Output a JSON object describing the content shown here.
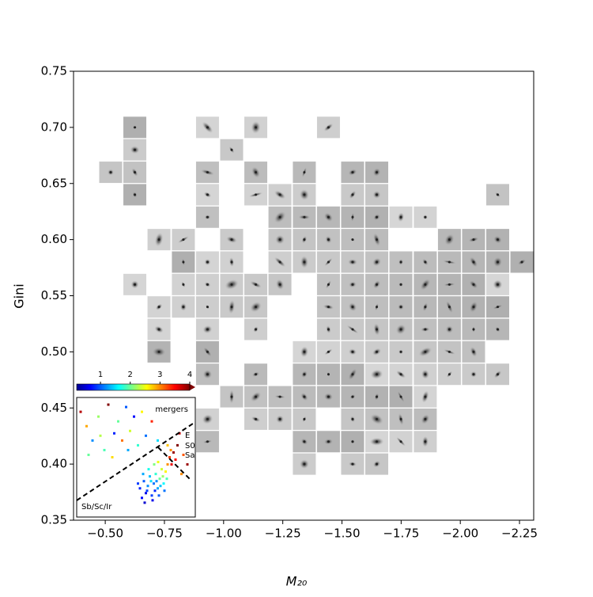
{
  "chart_data": [
    {
      "type": "image-grid",
      "xlabel": "M₂₀",
      "ylabel": "Gini",
      "xlim": [
        -0.366,
        -2.31
      ],
      "ylim": [
        0.35,
        0.75
      ],
      "xticks": [
        {
          "value": -0.5,
          "label": "−0.50"
        },
        {
          "value": -0.75,
          "label": "−0.75"
        },
        {
          "value": -1.0,
          "label": "−1.00"
        },
        {
          "value": -1.25,
          "label": "−1.25"
        },
        {
          "value": -1.5,
          "label": "−1.50"
        },
        {
          "value": -1.75,
          "label": "−1.75"
        },
        {
          "value": -2.0,
          "label": "−2.00"
        },
        {
          "value": -2.25,
          "label": "−2.25"
        }
      ],
      "yticks": [
        0.35,
        {
          "value": 0.4,
          "label": "0.40"
        },
        0.45,
        {
          "value": 0.5,
          "label": "0.50"
        },
        0.55,
        {
          "value": 0.6,
          "label": "0.60"
        },
        0.65,
        {
          "value": 0.7,
          "label": "0.70"
        },
        0.75
      ],
      "x": [
        -0.625,
        -0.932,
        -1.136,
        -1.443,
        -0.625,
        -1.034,
        -0.523,
        -0.625,
        -0.932,
        -1.136,
        -1.341,
        -1.545,
        -1.647,
        -0.625,
        -0.932,
        -1.136,
        -1.238,
        -1.341,
        -1.545,
        -1.647,
        -2.158,
        -0.932,
        -1.238,
        -1.341,
        -1.443,
        -1.545,
        -1.647,
        -1.749,
        -1.852,
        -0.727,
        -0.83,
        -1.034,
        -1.238,
        -1.341,
        -1.443,
        -1.545,
        -1.647,
        -1.954,
        -2.056,
        -2.158,
        -0.83,
        -0.932,
        -1.034,
        -1.238,
        -1.341,
        -1.443,
        -1.545,
        -1.647,
        -1.749,
        -1.852,
        -1.954,
        -2.056,
        -2.158,
        -2.26,
        -0.625,
        -0.83,
        -0.932,
        -1.034,
        -1.136,
        -1.238,
        -1.443,
        -1.545,
        -1.647,
        -1.749,
        -1.852,
        -1.954,
        -2.056,
        -2.158,
        -0.727,
        -0.83,
        -0.932,
        -1.034,
        -1.136,
        -1.443,
        -1.545,
        -1.647,
        -1.749,
        -1.852,
        -1.954,
        -2.056,
        -2.158,
        -0.727,
        -0.932,
        -1.136,
        -1.443,
        -1.545,
        -1.647,
        -1.749,
        -1.852,
        -1.954,
        -2.056,
        -2.158,
        -0.727,
        -0.932,
        -1.341,
        -1.443,
        -1.545,
        -1.647,
        -1.749,
        -1.852,
        -1.954,
        -2.056,
        -0.932,
        -1.136,
        -1.341,
        -1.443,
        -1.545,
        -1.647,
        -1.749,
        -1.852,
        -1.954,
        -2.056,
        -2.158,
        -1.034,
        -1.136,
        -1.238,
        -1.341,
        -1.443,
        -1.545,
        -1.647,
        -1.749,
        -1.852,
        -0.932,
        -1.136,
        -1.238,
        -1.341,
        -1.545,
        -1.647,
        -1.749,
        -1.852,
        -0.932,
        -1.341,
        -1.443,
        -1.545,
        -1.647,
        -1.749,
        -1.852,
        -1.341,
        -1.545,
        -1.647
      ],
      "values": [
        0.7,
        0.7,
        0.7,
        0.7,
        0.68,
        0.68,
        0.66,
        0.66,
        0.66,
        0.66,
        0.66,
        0.66,
        0.66,
        0.64,
        0.64,
        0.64,
        0.64,
        0.64,
        0.64,
        0.64,
        0.64,
        0.62,
        0.62,
        0.62,
        0.62,
        0.62,
        0.62,
        0.62,
        0.62,
        0.6,
        0.6,
        0.6,
        0.6,
        0.6,
        0.6,
        0.6,
        0.6,
        0.6,
        0.6,
        0.6,
        0.58,
        0.58,
        0.58,
        0.58,
        0.58,
        0.58,
        0.58,
        0.58,
        0.58,
        0.58,
        0.58,
        0.58,
        0.58,
        0.58,
        0.56,
        0.56,
        0.56,
        0.56,
        0.56,
        0.56,
        0.56,
        0.56,
        0.56,
        0.56,
        0.56,
        0.56,
        0.56,
        0.56,
        0.54,
        0.54,
        0.54,
        0.54,
        0.54,
        0.54,
        0.54,
        0.54,
        0.54,
        0.54,
        0.54,
        0.54,
        0.54,
        0.52,
        0.52,
        0.52,
        0.52,
        0.52,
        0.52,
        0.52,
        0.52,
        0.52,
        0.52,
        0.52,
        0.5,
        0.5,
        0.5,
        0.5,
        0.5,
        0.5,
        0.5,
        0.5,
        0.5,
        0.5,
        0.48,
        0.48,
        0.48,
        0.48,
        0.48,
        0.48,
        0.48,
        0.48,
        0.48,
        0.48,
        0.48,
        0.46,
        0.46,
        0.46,
        0.46,
        0.46,
        0.46,
        0.46,
        0.46,
        0.46,
        0.44,
        0.44,
        0.44,
        0.44,
        0.44,
        0.44,
        0.44,
        0.44,
        0.42,
        0.42,
        0.42,
        0.42,
        0.42,
        0.42,
        0.42,
        0.4,
        0.4,
        0.4
      ]
    },
    {
      "type": "scatter",
      "cmap": "jet",
      "xlim": [
        0,
        -3
      ],
      "ylim": [
        0.3,
        0.8
      ],
      "clim": [
        0.2,
        4.0
      ],
      "cticks": [
        1,
        2,
        3,
        4
      ],
      "annotations": [
        "mergers",
        "E",
        "S0",
        "Sa",
        "Sb/Sc/Ir"
      ],
      "x": [
        -1.6,
        -1.7,
        -1.75,
        -1.8,
        -1.85,
        -1.9,
        -1.95,
        -2.0,
        -2.05,
        -2.1,
        -2.15,
        -2.2,
        -2.25,
        -2.3,
        -1.65,
        -1.72,
        -1.78,
        -1.88,
        -1.92,
        -1.98,
        -2.02,
        -2.08,
        -2.12,
        -2.18,
        -2.22,
        -2.28,
        -1.55,
        -1.68,
        -1.82,
        -1.96,
        -2.06,
        -2.35,
        -2.4,
        -2.45,
        -2.5,
        -2.55,
        -2.38,
        -2.3,
        -0.1,
        -0.25,
        -0.4,
        -0.55,
        -0.7,
        -0.8,
        -0.95,
        -1.05,
        -1.15,
        -1.25,
        -1.35,
        -1.45,
        -1.55,
        -1.65,
        -1.75,
        -1.9,
        -2.05,
        -0.3,
        -0.9,
        -1.3,
        -0.6,
        -2.6,
        -2.7,
        -2.8,
        -2.65
      ],
      "values": [
        0.42,
        0.45,
        0.4,
        0.43,
        0.47,
        0.39,
        0.44,
        0.48,
        0.42,
        0.46,
        0.5,
        0.44,
        0.49,
        0.52,
        0.38,
        0.36,
        0.41,
        0.45,
        0.37,
        0.41,
        0.45,
        0.39,
        0.43,
        0.47,
        0.41,
        0.46,
        0.44,
        0.48,
        0.5,
        0.52,
        0.53,
        0.55,
        0.52,
        0.57,
        0.54,
        0.6,
        0.58,
        0.6,
        0.74,
        0.68,
        0.62,
        0.72,
        0.58,
        0.77,
        0.65,
        0.7,
        0.62,
        0.76,
        0.66,
        0.72,
        0.6,
        0.74,
        0.64,
        0.7,
        0.62,
        0.56,
        0.55,
        0.58,
        0.64,
        0.65,
        0.56,
        0.52,
        0.48
      ],
      "c": [
        0.8,
        1.0,
        0.6,
        1.2,
        1.4,
        0.9,
        1.1,
        1.8,
        1.3,
        2.0,
        2.4,
        1.6,
        2.6,
        3.0,
        0.7,
        0.5,
        0.9,
        1.5,
        0.6,
        0.8,
        1.2,
        1.0,
        1.4,
        2.2,
        1.1,
        1.9,
        0.9,
        1.3,
        1.7,
        2.1,
        2.5,
        3.3,
        3.6,
        3.9,
        3.5,
        4.0,
        3.0,
        2.8,
        3.8,
        2.9,
        1.2,
        2.2,
        1.9,
        4.0,
        0.8,
        2.0,
        3.1,
        1.0,
        2.4,
        0.7,
        1.8,
        2.6,
        1.1,
        3.4,
        1.5,
        2.0,
        2.7,
        1.3,
        2.3,
        3.7,
        3.2,
        3.9,
        3.0
      ]
    }
  ]
}
